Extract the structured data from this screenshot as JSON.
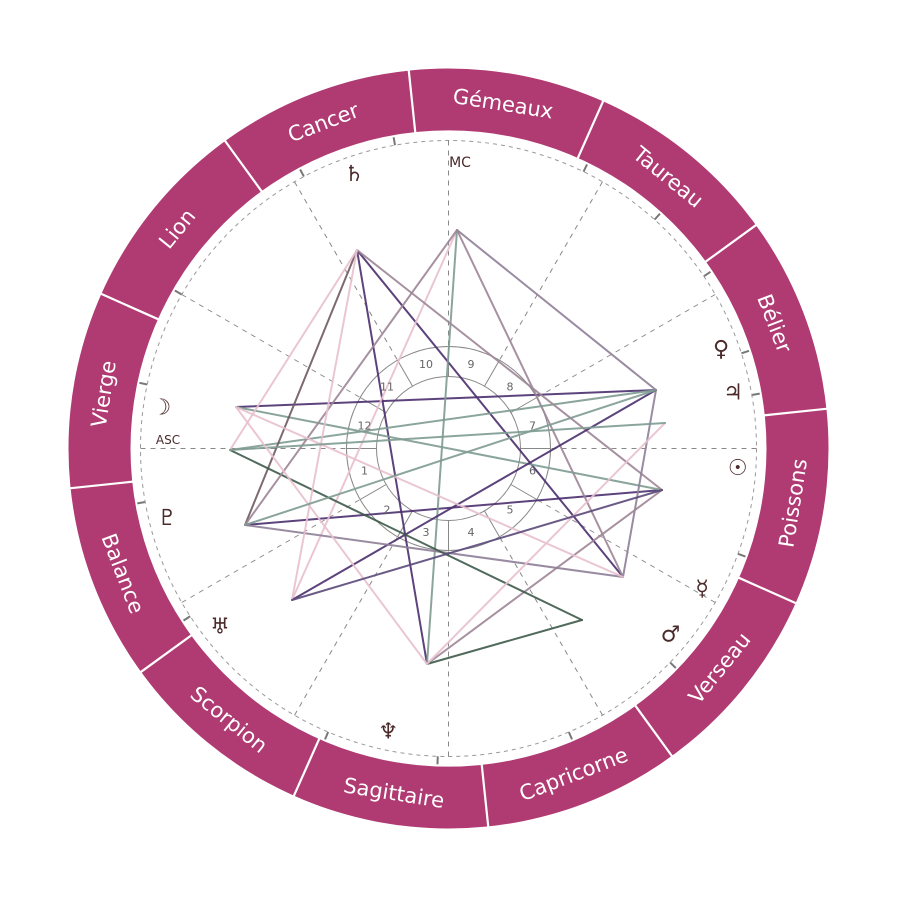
{
  "colors": {
    "ring": "#b03a72",
    "ring_divider": "#ffffff",
    "background": "#ffffff",
    "text_dark": "#4a2a2a",
    "house_lines": "#777777",
    "aspect_colors": [
      "#4b2f6e",
      "#8e7f97",
      "#7f9c92",
      "#9e8696",
      "#e8c0cf",
      "#3e5a4a",
      "#6e5a60",
      "#5a4a7a"
    ]
  },
  "signs": [
    {
      "name": "Gémeaux"
    },
    {
      "name": "Taureau"
    },
    {
      "name": "Bélier"
    },
    {
      "name": "Poissons"
    },
    {
      "name": "Verseau"
    },
    {
      "name": "Capricorne"
    },
    {
      "name": "Sagittaire"
    },
    {
      "name": "Scorpion"
    },
    {
      "name": "Balance"
    },
    {
      "name": "Vierge"
    },
    {
      "name": "Lion"
    },
    {
      "name": "Cancer"
    }
  ],
  "angles": {
    "mc": "MC",
    "asc": "ASC"
  },
  "houses": [
    "1",
    "2",
    "3",
    "4",
    "5",
    "6",
    "7",
    "8",
    "9",
    "10",
    "11",
    "12"
  ],
  "planets": [
    {
      "name": "saturn",
      "glyph": "♄"
    },
    {
      "name": "venus",
      "glyph": "♀"
    },
    {
      "name": "jupiter",
      "glyph": "♃"
    },
    {
      "name": "sun",
      "glyph": "☉"
    },
    {
      "name": "mercury",
      "glyph": "☿"
    },
    {
      "name": "mars",
      "glyph": "♂"
    },
    {
      "name": "neptune",
      "glyph": "♆"
    },
    {
      "name": "uranus",
      "glyph": "♅"
    },
    {
      "name": "pluto",
      "glyph": "♇"
    },
    {
      "name": "moon",
      "glyph": "☽"
    }
  ]
}
